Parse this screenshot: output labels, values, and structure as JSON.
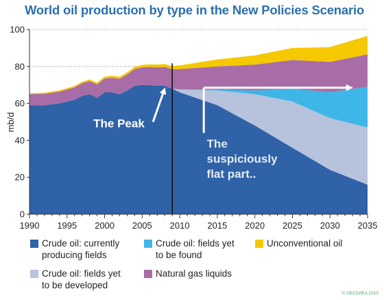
{
  "chart_data": {
    "type": "area",
    "title": "World oil production by type in the New Policies Scenario",
    "ylabel": "mb/d",
    "xlabel": "",
    "xlim": [
      1990,
      2035
    ],
    "ylim": [
      0,
      100
    ],
    "x_ticks": [
      1990,
      1995,
      2000,
      2005,
      2010,
      2015,
      2020,
      2025,
      2030,
      2035
    ],
    "y_ticks": [
      0,
      20,
      40,
      60,
      80,
      100
    ],
    "grid": "horizontal dotted",
    "peak_year_marker": 2009,
    "series": [
      {
        "name": "Crude oil: currently producing fields",
        "color": "#2f62a7",
        "points": [
          [
            1990,
            59
          ],
          [
            1992,
            59
          ],
          [
            1994,
            60
          ],
          [
            1996,
            62
          ],
          [
            1997,
            64
          ],
          [
            1998,
            65
          ],
          [
            1999,
            63
          ],
          [
            2000,
            66
          ],
          [
            2001,
            66
          ],
          [
            2002,
            65
          ],
          [
            2003,
            67
          ],
          [
            2004,
            69.5
          ],
          [
            2005,
            70
          ],
          [
            2006,
            70
          ],
          [
            2007,
            69.5
          ],
          [
            2008,
            69.5
          ],
          [
            2009,
            68
          ],
          [
            2010,
            66
          ],
          [
            2015,
            59
          ],
          [
            2020,
            48
          ],
          [
            2025,
            36
          ],
          [
            2030,
            24
          ],
          [
            2035,
            16
          ]
        ]
      },
      {
        "name": "Crude oil: fields yet to be developed",
        "color": "#b7c2dd",
        "points": [
          [
            1990,
            0
          ],
          [
            2008,
            0
          ],
          [
            2009,
            0
          ],
          [
            2010,
            1.5
          ],
          [
            2015,
            8
          ],
          [
            2020,
            17
          ],
          [
            2025,
            25
          ],
          [
            2030,
            28
          ],
          [
            2035,
            31
          ]
        ]
      },
      {
        "name": "Crude oil: fields yet to be found",
        "color": "#3fb6e8",
        "points": [
          [
            1990,
            0
          ],
          [
            2009,
            0
          ],
          [
            2015,
            0.5
          ],
          [
            2020,
            2
          ],
          [
            2025,
            7
          ],
          [
            2030,
            14
          ],
          [
            2035,
            22
          ]
        ]
      },
      {
        "name": "Natural gas liquids",
        "color": "#a86da7",
        "points": [
          [
            1990,
            6
          ],
          [
            1995,
            6.5
          ],
          [
            2000,
            7.5
          ],
          [
            2005,
            9.5
          ],
          [
            2009,
            10.5
          ],
          [
            2010,
            11
          ],
          [
            2015,
            12.5
          ],
          [
            2020,
            14
          ],
          [
            2025,
            15.5
          ],
          [
            2030,
            16.5
          ],
          [
            2035,
            17.5
          ]
        ]
      },
      {
        "name": "Unconventional oil",
        "color": "#f6c800",
        "points": [
          [
            1990,
            0.5
          ],
          [
            1995,
            0.7
          ],
          [
            2000,
            1
          ],
          [
            2005,
            1.3
          ],
          [
            2009,
            1.7
          ],
          [
            2010,
            2
          ],
          [
            2015,
            3.8
          ],
          [
            2020,
            5
          ],
          [
            2025,
            6.5
          ],
          [
            2030,
            8
          ],
          [
            2035,
            10
          ]
        ]
      }
    ],
    "annotations": {
      "peak": "The Peak",
      "flat_line1": "The",
      "flat_line2": "suspiciously",
      "flat_line3": "flat part.."
    }
  },
  "legend": [
    {
      "line1": "Crude oil: currently",
      "line2": "producing fields",
      "color": "#2f62a7"
    },
    {
      "line1": "Crude oil: fields yet",
      "line2": "to be developed",
      "color": "#b7c2dd"
    },
    {
      "line1": "Crude oil: fields yet",
      "line2": "to be found",
      "color": "#3fb6e8"
    },
    {
      "line1": "Natural gas liquids",
      "line2": "",
      "color": "#a86da7"
    },
    {
      "line1": "Unconventional oil",
      "line2": "",
      "color": "#f6c800"
    }
  ],
  "copyright": "© OECD/IEA 2010"
}
